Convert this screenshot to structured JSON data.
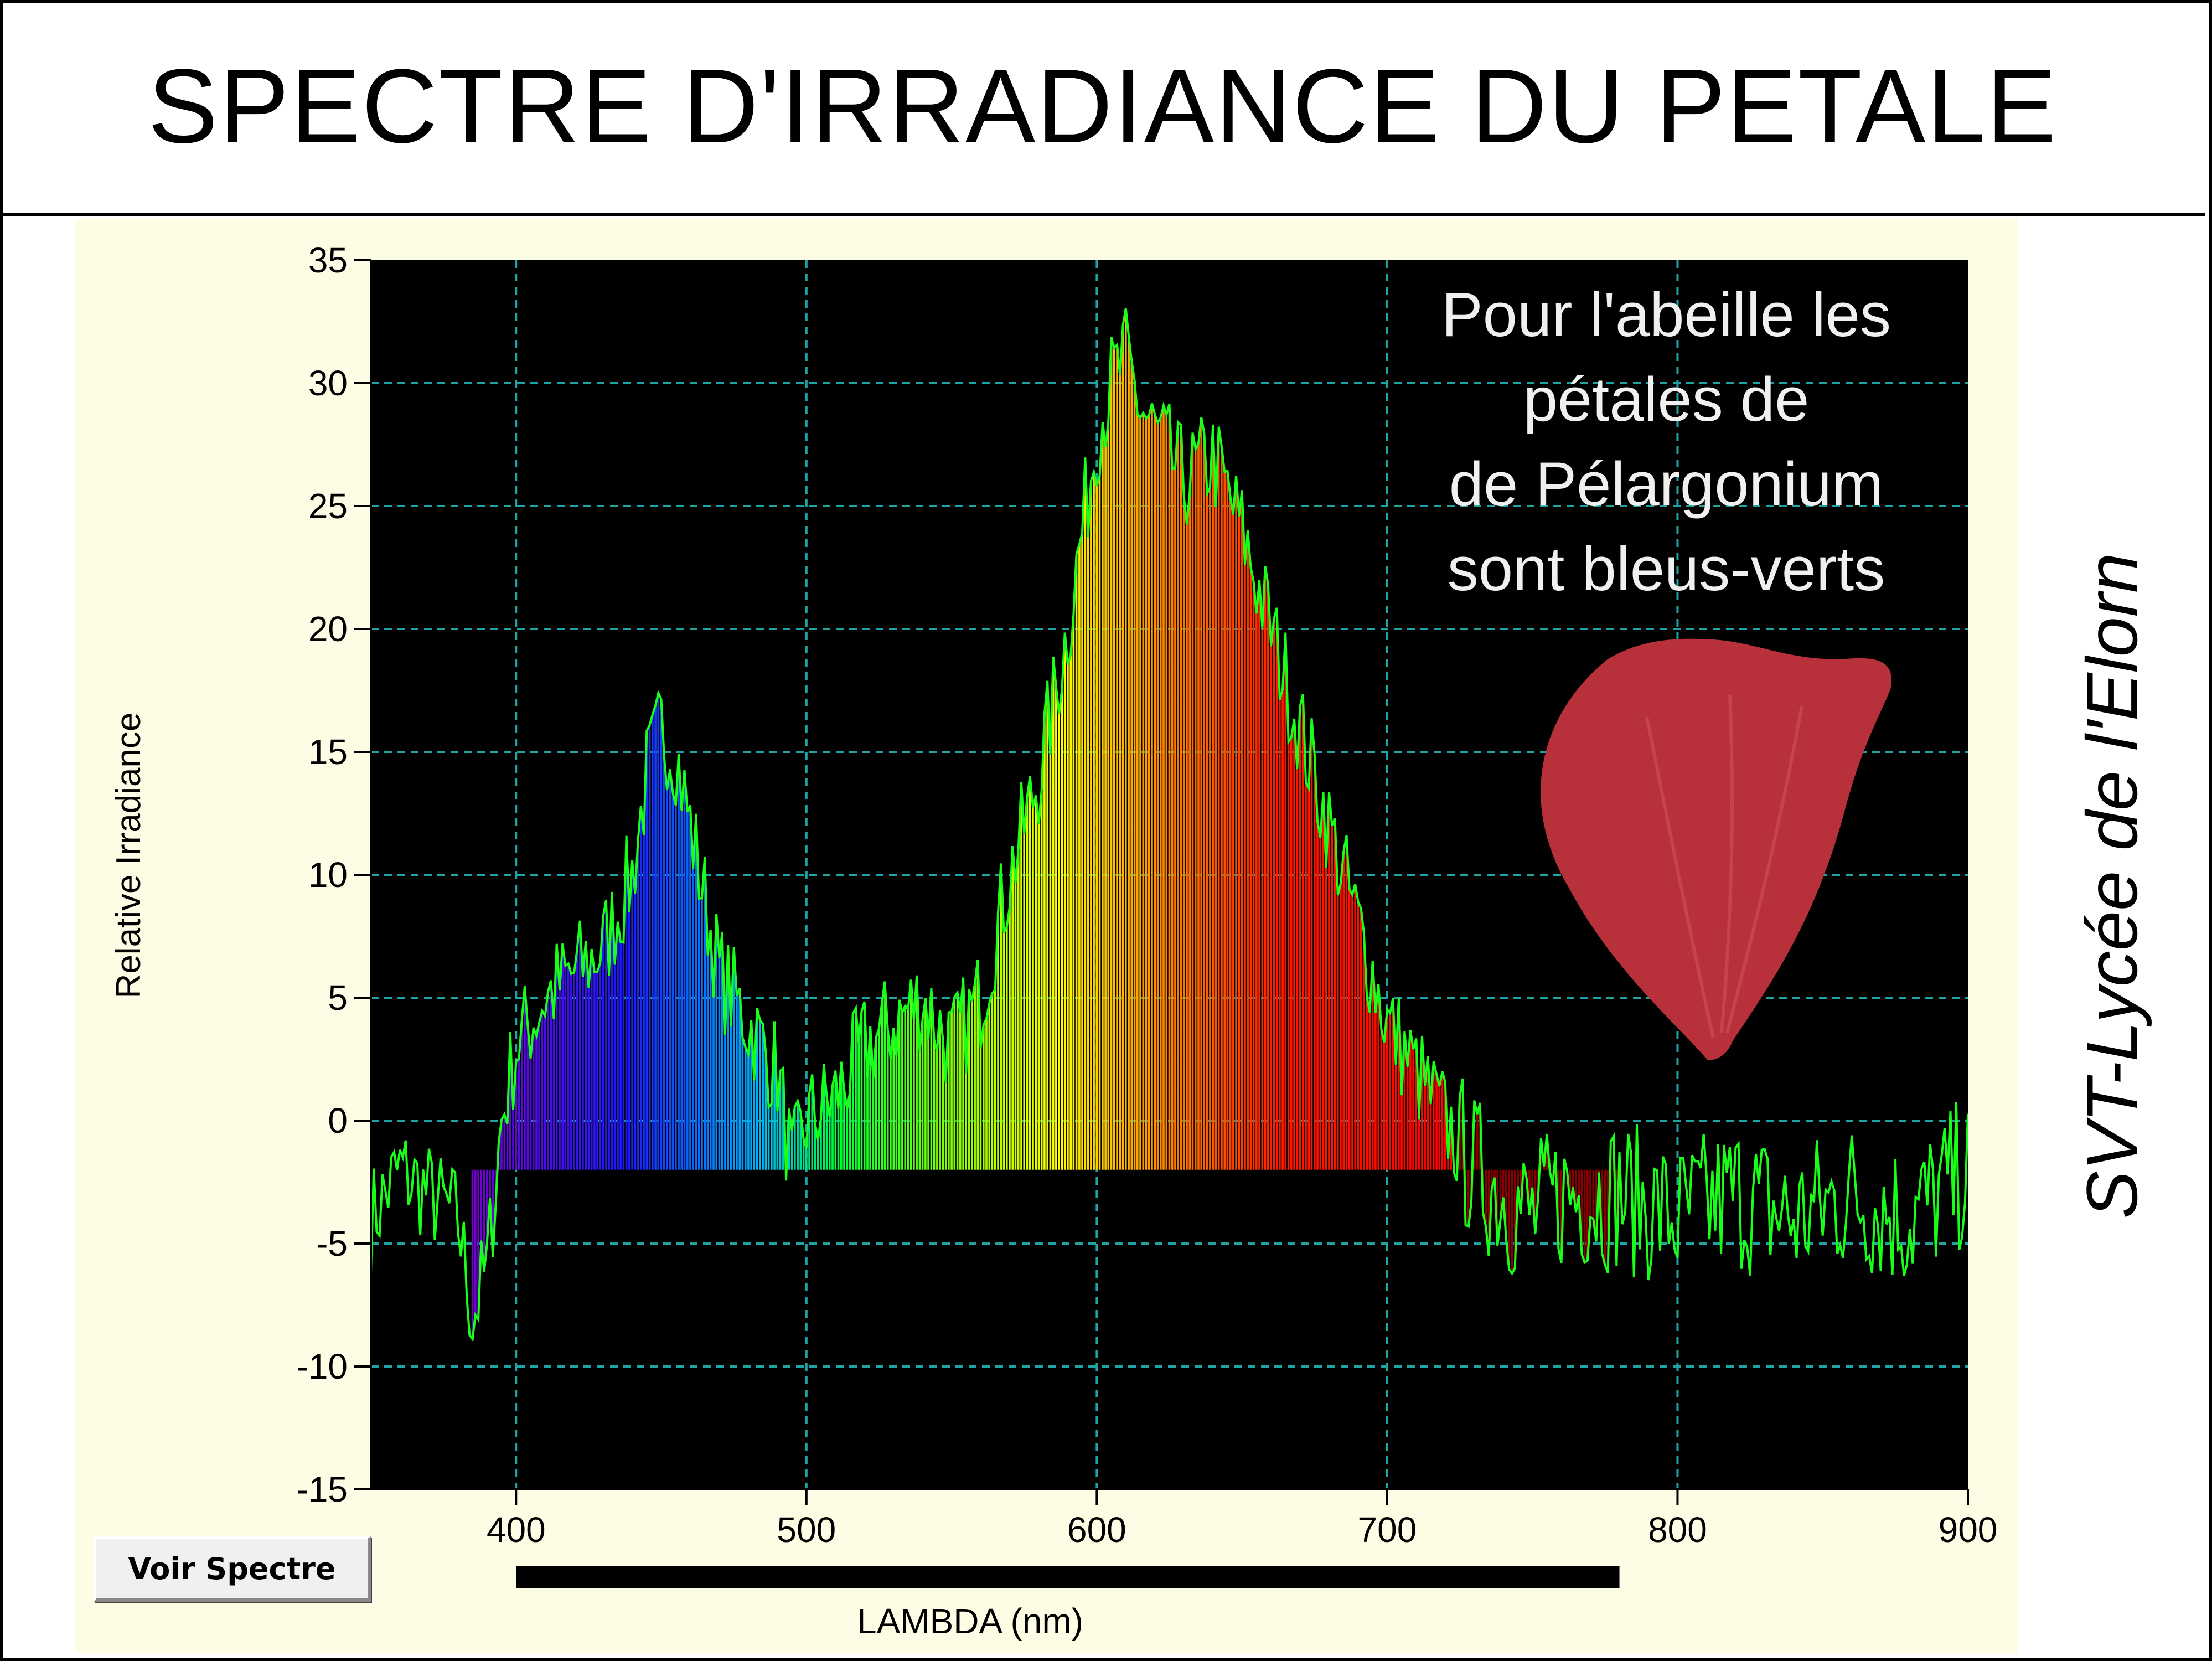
{
  "page": {
    "title": "SPECTRE D'IRRADIANCE DU PETALE",
    "side_label": "SVT-Lycée de l'Elorn",
    "button_label": "Voir Spectre"
  },
  "chart_data": {
    "type": "area",
    "title": "",
    "xlabel": "LAMBDA (nm)",
    "ylabel": "Relative Irradiance",
    "xlim": [
      350,
      900
    ],
    "ylim": [
      -15,
      35
    ],
    "x_ticks": [
      "400",
      "500",
      "600",
      "700",
      "800",
      "900"
    ],
    "y_ticks": [
      "35",
      "30",
      "25",
      "20",
      "15",
      "10",
      "5",
      "0",
      "-5",
      "-10",
      "-15"
    ],
    "grid": true,
    "baseline": -2,
    "annotation": [
      "Pour l'abeille les",
      "pétales de",
      "de Pélargonium",
      "sont bleus-verts"
    ],
    "visible_band_nm": [
      400,
      780
    ],
    "colors": {
      "plot_background": "#000000",
      "grid": "#1fa3a3",
      "trace": "#1aff1a",
      "panel": "#fdfde6",
      "petal": "#b8303a"
    },
    "series": [
      {
        "x": [
          350,
          360,
          370,
          380,
          385,
          390,
          395,
          400,
          410,
          420,
          430,
          440,
          445,
          450,
          455,
          460,
          465,
          470,
          475,
          480,
          490,
          495,
          500,
          510,
          520,
          530,
          540,
          550,
          560,
          570,
          580,
          590,
          600,
          605,
          610,
          615,
          620,
          625,
          630,
          640,
          650,
          660,
          670,
          680,
          690,
          700,
          710,
          720,
          730,
          740,
          750,
          760,
          780,
          800,
          820,
          840,
          860,
          880,
          900
        ],
        "y": [
          -4,
          -2,
          -3,
          -4,
          -8,
          -6,
          0,
          3,
          5,
          6,
          7,
          10,
          14,
          16,
          15,
          12,
          9,
          6,
          5,
          4,
          2,
          -2,
          0,
          1,
          3,
          4,
          5,
          3,
          5,
          10,
          14,
          20,
          28,
          30,
          31,
          29,
          28,
          27,
          26,
          27,
          24,
          20,
          16,
          12,
          8,
          4,
          2,
          0,
          -2,
          -3,
          -4,
          -3,
          -3,
          -4,
          -3,
          -4,
          -3,
          -4,
          -2
        ]
      }
    ]
  }
}
